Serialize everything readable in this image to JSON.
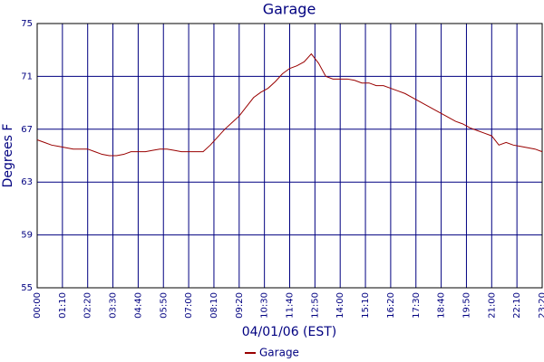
{
  "chart_data": {
    "type": "line",
    "title": "Garage",
    "x_label": "04/01/06 (EST)",
    "y_label": "Degrees F",
    "x": [
      "00:00",
      "00:20",
      "00:40",
      "01:00",
      "01:20",
      "01:40",
      "02:00",
      "02:20",
      "02:40",
      "03:00",
      "03:20",
      "03:40",
      "04:00",
      "04:20",
      "04:40",
      "05:00",
      "05:20",
      "05:40",
      "06:00",
      "06:20",
      "06:40",
      "07:00",
      "07:20",
      "07:40",
      "08:00",
      "08:20",
      "08:40",
      "09:00",
      "09:20",
      "09:40",
      "10:00",
      "10:20",
      "10:40",
      "11:00",
      "11:20",
      "11:40",
      "12:00",
      "12:20",
      "12:40",
      "13:00",
      "13:20",
      "13:40",
      "14:00",
      "14:20",
      "14:40",
      "15:00",
      "15:20",
      "15:40",
      "16:00",
      "16:20",
      "16:40",
      "17:00",
      "17:20",
      "17:40",
      "18:00",
      "18:20",
      "18:40",
      "19:00",
      "19:20",
      "19:40",
      "20:00",
      "20:20",
      "20:40",
      "21:00",
      "21:20",
      "21:40",
      "22:00",
      "22:20",
      "22:40",
      "23:00",
      "23:20"
    ],
    "series": [
      {
        "name": "Garage",
        "color": "#990000",
        "values": [
          66.2,
          66.0,
          65.8,
          65.7,
          65.6,
          65.5,
          65.5,
          65.5,
          65.3,
          65.1,
          65.0,
          65.0,
          65.1,
          65.3,
          65.3,
          65.3,
          65.4,
          65.5,
          65.5,
          65.4,
          65.3,
          65.3,
          65.3,
          65.3,
          65.8,
          66.4,
          67.0,
          67.5,
          68.0,
          68.7,
          69.4,
          69.8,
          70.1,
          70.6,
          71.2,
          71.6,
          71.8,
          72.1,
          72.7,
          72.0,
          71.0,
          70.8,
          70.8,
          70.8,
          70.7,
          70.5,
          70.5,
          70.3,
          70.3,
          70.1,
          69.9,
          69.7,
          69.4,
          69.1,
          68.8,
          68.5,
          68.2,
          67.9,
          67.6,
          67.4,
          67.1,
          66.9,
          66.7,
          66.5,
          65.8,
          66.0,
          65.8,
          65.7,
          65.6,
          65.5,
          65.3
        ]
      }
    ],
    "xlim": [
      "00:00",
      "23:20"
    ],
    "xticks": [
      "00:00",
      "01:10",
      "02:20",
      "03:30",
      "04:40",
      "05:50",
      "07:00",
      "08:10",
      "09:20",
      "10:30",
      "11:40",
      "12:50",
      "14:00",
      "15:10",
      "16:20",
      "17:30",
      "18:40",
      "19:50",
      "21:00",
      "22:10",
      "23:20"
    ],
    "ylim": [
      55,
      75
    ],
    "yticks": [
      55,
      59,
      63,
      67,
      71,
      75
    ],
    "grid": true,
    "legend": "bottom"
  }
}
